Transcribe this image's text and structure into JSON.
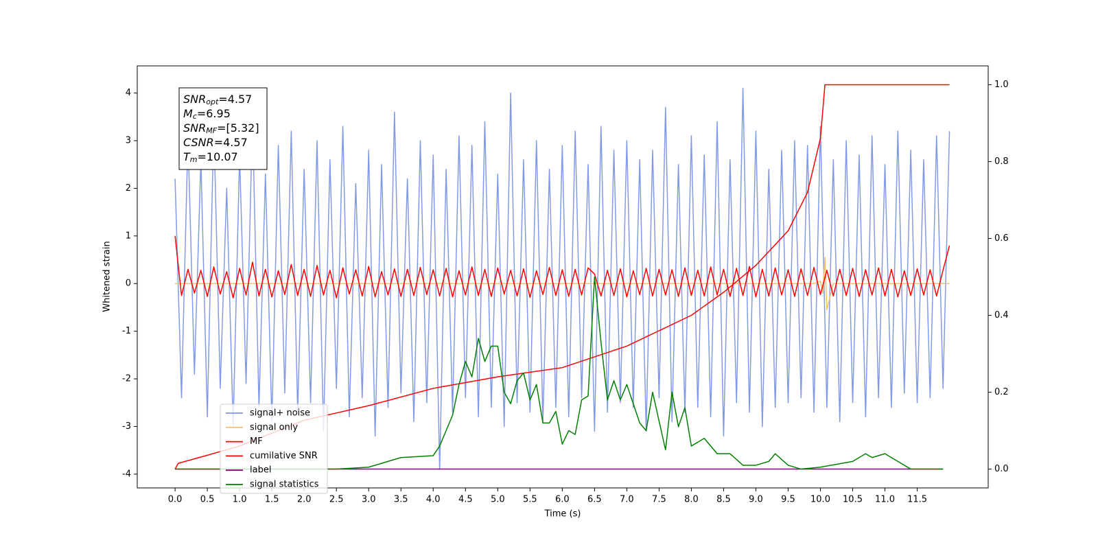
{
  "chart_data": {
    "type": "line",
    "xlabel": "Time (s)",
    "ylabel": "Whitened strain",
    "xlim": [
      -0.586,
      12.6
    ],
    "ylim": [
      -4.29,
      4.57
    ],
    "y2lim": [
      -0.049,
      1.049
    ],
    "xticks": [
      {
        "value": 0,
        "label": "0.0"
      },
      0.5,
      {
        "value": 1,
        "label": "1.0"
      },
      1.5,
      {
        "value": 2,
        "label": "2.0"
      },
      2.5,
      {
        "value": 3,
        "label": "3.0"
      },
      3.5,
      {
        "value": 4,
        "label": "4.0"
      },
      4.5,
      {
        "value": 5,
        "label": "5.0"
      },
      5.5,
      {
        "value": 6,
        "label": "6.0"
      },
      6.5,
      {
        "value": 7,
        "label": "7.0"
      },
      7.5,
      {
        "value": 8,
        "label": "8.0"
      },
      8.5,
      {
        "value": 9,
        "label": "9.0"
      },
      9.5,
      {
        "value": 10,
        "label": "10.0"
      },
      10.5,
      {
        "value": 11,
        "label": "11.0"
      },
      11.5
    ],
    "yticks": [
      -4,
      -3,
      -2,
      -1,
      0,
      1,
      2,
      3,
      4
    ],
    "y2ticks": [
      {
        "value": 0,
        "label": "0.0"
      },
      0.2,
      0.4,
      0.6,
      0.8,
      {
        "value": 1,
        "label": "1.0"
      }
    ],
    "grid": false,
    "legend": "lower left",
    "annotation": {
      "lines": [
        {
          "symbol": "SNR",
          "sub": "opt",
          "value": "=4.57"
        },
        {
          "symbol": "M",
          "sub": "c",
          "value": "=6.95"
        },
        {
          "symbol": "SNR",
          "sub": "MF",
          "value": "=[5.32]"
        },
        {
          "symbol": "CSNR",
          "value": "=4.57"
        },
        {
          "symbol": "T",
          "sub": "m",
          "value": "=10.07"
        }
      ]
    },
    "series": [
      {
        "name": "signal+ noise",
        "color": "#7b93e6",
        "axis": "y",
        "x": [
          0,
          0.1,
          0.2,
          0.3,
          0.4,
          0.5,
          0.6,
          0.7,
          0.8,
          0.9,
          1,
          1.1,
          1.2,
          1.3,
          1.4,
          1.5,
          1.6,
          1.7,
          1.8,
          1.9,
          2,
          2.1,
          2.2,
          2.3,
          2.4,
          2.5,
          2.6,
          2.7,
          2.8,
          2.9,
          3,
          3.1,
          3.2,
          3.3,
          3.4,
          3.5,
          3.6,
          3.7,
          3.8,
          3.9,
          4,
          4.1,
          4.2,
          4.3,
          4.4,
          4.5,
          4.6,
          4.7,
          4.8,
          4.9,
          5,
          5.1,
          5.2,
          5.3,
          5.4,
          5.5,
          5.6,
          5.7,
          5.8,
          5.9,
          6,
          6.1,
          6.2,
          6.3,
          6.4,
          6.5,
          6.6,
          6.7,
          6.8,
          6.9,
          7,
          7.1,
          7.2,
          7.3,
          7.4,
          7.5,
          7.6,
          7.7,
          7.8,
          7.9,
          8,
          8.1,
          8.2,
          8.3,
          8.4,
          8.5,
          8.6,
          8.7,
          8.8,
          8.9,
          9,
          9.1,
          9.2,
          9.3,
          9.4,
          9.5,
          9.6,
          9.7,
          9.8,
          9.9,
          10,
          10.1,
          10.2,
          10.3,
          10.4,
          10.5,
          10.6,
          10.7,
          10.8,
          10.9,
          11,
          11.1,
          11.2,
          11.3,
          11.4,
          11.5,
          11.6,
          11.7,
          11.8,
          11.9,
          12
        ],
        "values": [
          2.2,
          -2.4,
          3.1,
          -1.9,
          2.6,
          -2.8,
          3.4,
          -2.2,
          2.0,
          -3.0,
          2.7,
          -2.1,
          3.5,
          -2.6,
          2.3,
          -2.9,
          2.9,
          -2.3,
          3.2,
          -2.7,
          2.4,
          -2.5,
          3.0,
          -3.1,
          2.6,
          -2.2,
          3.3,
          -2.8,
          2.1,
          -2.4,
          2.8,
          -3.2,
          2.5,
          -2.6,
          3.6,
          -2.3,
          2.2,
          -2.9,
          3.0,
          -2.5,
          2.7,
          -3.9,
          2.4,
          -2.7,
          3.1,
          -2.4,
          2.9,
          -2.8,
          3.4,
          -2.6,
          2.3,
          -3.0,
          4.0,
          -2.5,
          2.6,
          -2.7,
          3.0,
          -2.9,
          2.4,
          -2.6,
          2.9,
          -2.8,
          3.2,
          -2.4,
          2.5,
          -3.1,
          3.3,
          -2.7,
          2.8,
          -2.5,
          3.0,
          -2.6,
          2.6,
          -3.1,
          2.8,
          -2.4,
          3.7,
          -2.9,
          2.5,
          -2.7,
          3.1,
          -2.6,
          2.7,
          -2.8,
          3.4,
          -3.2,
          2.6,
          -2.5,
          4.1,
          -2.7,
          3.2,
          -3.0,
          2.4,
          -2.6,
          2.8,
          -2.5,
          3.0,
          -2.4,
          2.9,
          -2.7,
          3.3,
          -2.6,
          2.6,
          -2.9,
          3.0,
          -2.5,
          2.7,
          -2.8,
          3.1,
          -2.4,
          2.5,
          -2.6,
          3.2,
          -2.3,
          2.8,
          -2.5,
          2.6,
          -2.4,
          3.1,
          -2.2,
          3.2
        ]
      },
      {
        "name": "signal only",
        "color": "#f5c26b",
        "axis": "y",
        "x": [
          0,
          9.9,
          10.0,
          10.04,
          10.07,
          10.1,
          10.2,
          12
        ],
        "values": [
          0,
          0,
          0.05,
          -0.2,
          0.55,
          -0.55,
          0,
          0
        ]
      },
      {
        "name": "MF",
        "color": "#ff0000",
        "axis": "y",
        "x": [
          0,
          0.1,
          0.2,
          0.3,
          0.4,
          0.5,
          0.6,
          0.7,
          0.8,
          0.9,
          1,
          1.1,
          1.2,
          1.3,
          1.4,
          1.5,
          1.6,
          1.7,
          1.8,
          1.9,
          2,
          2.1,
          2.2,
          2.3,
          2.4,
          2.5,
          2.6,
          2.7,
          2.8,
          2.9,
          3,
          3.1,
          3.2,
          3.3,
          3.4,
          3.5,
          3.6,
          3.7,
          3.8,
          3.9,
          4,
          4.1,
          4.2,
          4.3,
          4.4,
          4.5,
          4.6,
          4.7,
          4.8,
          4.9,
          5,
          5.1,
          5.2,
          5.3,
          5.4,
          5.5,
          5.6,
          5.7,
          5.8,
          5.9,
          6,
          6.1,
          6.2,
          6.3,
          6.4,
          6.5,
          6.6,
          6.7,
          6.8,
          6.9,
          7,
          7.1,
          7.2,
          7.3,
          7.4,
          7.5,
          7.6,
          7.7,
          7.8,
          7.9,
          8,
          8.1,
          8.2,
          8.3,
          8.4,
          8.5,
          8.6,
          8.7,
          8.8,
          8.9,
          9,
          9.1,
          9.2,
          9.3,
          9.4,
          9.5,
          9.6,
          9.7,
          9.8,
          9.9,
          10,
          10.1,
          10.2,
          10.3,
          10.4,
          10.5,
          10.6,
          10.7,
          10.8,
          10.9,
          11,
          11.1,
          11.2,
          11.3,
          11.4,
          11.5,
          11.6,
          11.7,
          11.8,
          11.9,
          12
        ],
        "values": [
          1.0,
          -0.25,
          0.3,
          -0.2,
          0.28,
          -0.27,
          0.35,
          -0.22,
          0.25,
          -0.3,
          0.32,
          -0.24,
          0.45,
          -0.26,
          0.3,
          -0.28,
          0.27,
          -0.23,
          0.4,
          -0.25,
          0.3,
          -0.27,
          0.38,
          -0.24,
          0.28,
          -0.3,
          0.33,
          -0.22,
          0.29,
          -0.26,
          0.36,
          -0.28,
          0.25,
          -0.24,
          0.31,
          -0.27,
          0.3,
          -0.25,
          0.34,
          -0.23,
          0.29,
          -0.26,
          0.32,
          -0.28,
          0.27,
          -0.24,
          0.35,
          -0.25,
          0.3,
          -0.27,
          0.33,
          -0.22,
          0.28,
          -0.26,
          0.31,
          -0.29,
          0.27,
          -0.23,
          0.34,
          -0.25,
          0.29,
          -0.27,
          0.3,
          -0.24,
          0.33,
          0.2,
          -0.26,
          0.28,
          -0.25,
          0.31,
          -0.28,
          0.27,
          -0.23,
          0.32,
          -0.26,
          0.3,
          -0.24,
          0.29,
          -0.27,
          0.33,
          -0.25,
          0.28,
          -0.26,
          0.35,
          -0.24,
          0.3,
          -0.27,
          0.32,
          -0.25,
          0.36,
          -0.28,
          0.3,
          -0.26,
          0.33,
          -0.24,
          0.29,
          -0.27,
          0.31,
          -0.25,
          0.34,
          -0.23,
          0.28,
          -0.26,
          0.3,
          -0.25,
          0.32,
          -0.27,
          0.29,
          -0.24,
          0.33,
          -0.26,
          0.3,
          -0.28,
          0.27,
          -0.25,
          0.31,
          -0.24,
          0.29,
          -0.26,
          0.28,
          0.8
        ]
      },
      {
        "name": "cumilative SNR",
        "color": "#ff0000",
        "axis": "y2",
        "x": [
          0,
          0.05,
          0.5,
          1,
          2,
          3,
          4,
          5,
          6,
          7,
          8,
          8.5,
          9,
          9.5,
          9.8,
          10.0,
          10.07,
          12
        ],
        "values": [
          0,
          0.015,
          0.036,
          0.06,
          0.127,
          0.165,
          0.21,
          0.24,
          0.264,
          0.32,
          0.4,
          0.46,
          0.53,
          0.62,
          0.72,
          0.86,
          1.0,
          1.0
        ]
      },
      {
        "name": "label",
        "color": "#800080",
        "axis": "y2",
        "x": [
          0,
          11.9
        ],
        "values": [
          0,
          0
        ]
      },
      {
        "name": "signal statistics",
        "color": "#008000",
        "axis": "y2",
        "x": [
          0,
          2.5,
          3,
          3.5,
          4,
          4.1,
          4.3,
          4.4,
          4.5,
          4.6,
          4.7,
          4.8,
          4.9,
          5,
          5.1,
          5.2,
          5.3,
          5.4,
          5.5,
          5.6,
          5.7,
          5.8,
          5.9,
          6,
          6.1,
          6.2,
          6.3,
          6.4,
          6.5,
          6.6,
          6.7,
          6.8,
          6.9,
          7,
          7.2,
          7.3,
          7.4,
          7.6,
          7.7,
          7.8,
          7.9,
          8,
          8.2,
          8.4,
          8.6,
          8.8,
          9,
          9.2,
          9.3,
          9.5,
          9.7,
          10,
          10.5,
          10.7,
          10.8,
          11,
          11.2,
          11.4,
          11.9
        ],
        "values": [
          0,
          0,
          0.005,
          0.03,
          0.035,
          0.06,
          0.14,
          0.22,
          0.28,
          0.24,
          0.34,
          0.28,
          0.32,
          0.32,
          0.2,
          0.17,
          0.23,
          0.25,
          0.18,
          0.22,
          0.12,
          0.12,
          0.15,
          0.065,
          0.1,
          0.09,
          0.18,
          0.19,
          0.5,
          0.33,
          0.18,
          0.23,
          0.18,
          0.22,
          0.12,
          0.1,
          0.2,
          0.05,
          0.2,
          0.11,
          0.16,
          0.06,
          0.08,
          0.04,
          0.04,
          0.01,
          0.01,
          0.02,
          0.04,
          0.01,
          0,
          0.005,
          0.02,
          0.04,
          0.03,
          0.04,
          0.02,
          0,
          0
        ]
      }
    ]
  }
}
